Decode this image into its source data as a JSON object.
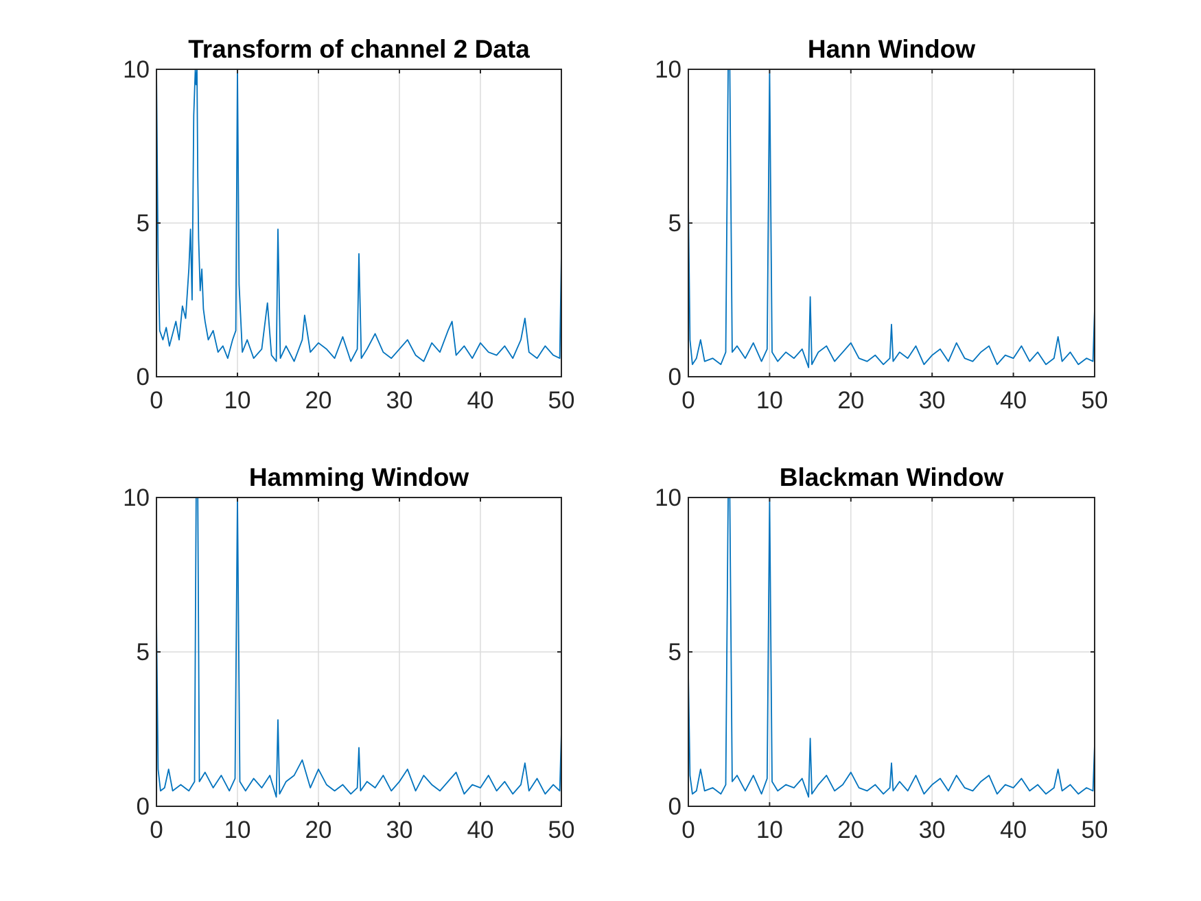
{
  "chart_data": [
    {
      "type": "line",
      "title": "Transform of channel 2 Data",
      "xlabel": "",
      "ylabel": "",
      "xlim": [
        0,
        50
      ],
      "ylim": [
        0,
        10
      ],
      "xticks": [
        "0",
        "10",
        "20",
        "30",
        "40",
        "50"
      ],
      "yticks": [
        "0",
        "5",
        "10"
      ],
      "grid": true,
      "color": "#0072BD",
      "series": [
        {
          "x": [
            0,
            0.2,
            0.4,
            0.8,
            1.2,
            1.6,
            2.0,
            2.4,
            2.8,
            3.2,
            3.6,
            4.0,
            4.2,
            4.4,
            4.6,
            4.8,
            4.9,
            5.0,
            5.1,
            5.2,
            5.4,
            5.6,
            5.8,
            6.0,
            6.4,
            7.0,
            7.6,
            8.2,
            8.8,
            9.4,
            9.8,
            10.0,
            10.2,
            10.6,
            11.2,
            12.0,
            13.0,
            13.7,
            14.2,
            14.8,
            15.0,
            15.3,
            16.0,
            17.0,
            18.0,
            18.3,
            19.0,
            20.0,
            21.0,
            22.0,
            23.0,
            24.0,
            24.8,
            25.0,
            25.3,
            26.0,
            27.0,
            28.0,
            29.0,
            30.0,
            31.0,
            32.0,
            33.0,
            34.0,
            35.0,
            36.0,
            36.5,
            37.0,
            38.0,
            39.0,
            40.0,
            41.0,
            42.0,
            43.0,
            44.0,
            45.0,
            45.5,
            46.0,
            47.0,
            48.0,
            49.0,
            49.8,
            50.0
          ],
          "y": [
            10,
            3.8,
            1.5,
            1.2,
            1.6,
            1.0,
            1.4,
            1.8,
            1.2,
            2.3,
            1.9,
            3.5,
            4.8,
            2.5,
            8.5,
            10,
            9.5,
            10,
            6.5,
            4.5,
            2.8,
            3.5,
            2.2,
            1.8,
            1.2,
            1.5,
            0.8,
            1.0,
            0.6,
            1.2,
            1.5,
            10,
            3.0,
            0.8,
            1.2,
            0.6,
            0.9,
            2.4,
            0.7,
            0.5,
            4.8,
            0.6,
            1.0,
            0.5,
            1.2,
            2.0,
            0.8,
            1.1,
            0.9,
            0.6,
            1.3,
            0.5,
            0.9,
            4.0,
            0.6,
            0.9,
            1.4,
            0.8,
            0.6,
            0.9,
            1.2,
            0.7,
            0.5,
            1.1,
            0.8,
            1.5,
            1.8,
            0.7,
            1.0,
            0.6,
            1.1,
            0.8,
            0.7,
            1.0,
            0.6,
            1.2,
            1.9,
            0.8,
            0.6,
            1.0,
            0.7,
            0.6,
            4.0
          ]
        }
      ]
    },
    {
      "type": "line",
      "title": "Hann Window",
      "xlabel": "",
      "ylabel": "",
      "xlim": [
        0,
        50
      ],
      "ylim": [
        0,
        10
      ],
      "xticks": [
        "0",
        "10",
        "20",
        "30",
        "40",
        "50"
      ],
      "yticks": [
        "0",
        "5",
        "10"
      ],
      "grid": true,
      "color": "#0072BD",
      "series": [
        {
          "x": [
            0,
            0.2,
            0.5,
            1.0,
            1.5,
            2.0,
            3.0,
            4.0,
            4.6,
            4.9,
            5.0,
            5.1,
            5.4,
            6.0,
            7.0,
            8.0,
            9.0,
            9.7,
            10.0,
            10.3,
            11.0,
            12.0,
            13.0,
            14.0,
            14.8,
            15.0,
            15.2,
            16.0,
            17.0,
            18.0,
            19.0,
            20.0,
            21.0,
            22.0,
            23.0,
            24.0,
            24.8,
            25.0,
            25.2,
            26.0,
            27.0,
            28.0,
            29.0,
            30.0,
            31.0,
            32.0,
            33.0,
            34.0,
            35.0,
            36.0,
            37.0,
            38.0,
            39.0,
            40.0,
            41.0,
            42.0,
            43.0,
            44.0,
            45.0,
            45.5,
            46.0,
            47.0,
            48.0,
            49.0,
            49.8,
            50.0
          ],
          "y": [
            5.7,
            1.2,
            0.4,
            0.6,
            1.2,
            0.5,
            0.6,
            0.4,
            0.8,
            10,
            10,
            10,
            0.8,
            1.0,
            0.6,
            1.1,
            0.5,
            0.9,
            10,
            0.8,
            0.5,
            0.8,
            0.6,
            0.9,
            0.3,
            2.6,
            0.4,
            0.8,
            1.0,
            0.5,
            0.8,
            1.1,
            0.6,
            0.5,
            0.7,
            0.4,
            0.6,
            1.7,
            0.5,
            0.8,
            0.6,
            1.0,
            0.4,
            0.7,
            0.9,
            0.5,
            1.1,
            0.6,
            0.5,
            0.8,
            1.0,
            0.4,
            0.7,
            0.6,
            1.0,
            0.5,
            0.8,
            0.4,
            0.6,
            1.3,
            0.5,
            0.8,
            0.4,
            0.6,
            0.5,
            2.2
          ]
        }
      ]
    },
    {
      "type": "line",
      "title": "Hamming Window",
      "xlabel": "",
      "ylabel": "",
      "xlim": [
        0,
        50
      ],
      "ylim": [
        0,
        10
      ],
      "xticks": [
        "0",
        "10",
        "20",
        "30",
        "40",
        "50"
      ],
      "yticks": [
        "0",
        "5",
        "10"
      ],
      "grid": true,
      "color": "#0072BD",
      "series": [
        {
          "x": [
            0,
            0.2,
            0.5,
            1.0,
            1.5,
            2.0,
            3.0,
            4.0,
            4.7,
            4.9,
            5.0,
            5.1,
            5.3,
            6.0,
            7.0,
            8.0,
            9.0,
            9.7,
            10.0,
            10.3,
            11.0,
            12.0,
            13.0,
            14.0,
            14.8,
            15.0,
            15.2,
            16.0,
            17.0,
            18.0,
            19.0,
            20.0,
            21.0,
            22.0,
            23.0,
            24.0,
            24.8,
            25.0,
            25.2,
            26.0,
            27.0,
            28.0,
            29.0,
            30.0,
            31.0,
            32.0,
            33.0,
            34.0,
            35.0,
            36.0,
            37.0,
            38.0,
            39.0,
            40.0,
            41.0,
            42.0,
            43.0,
            44.0,
            45.0,
            45.5,
            46.0,
            47.0,
            48.0,
            49.0,
            49.8,
            50.0
          ],
          "y": [
            6.1,
            1.2,
            0.5,
            0.6,
            1.2,
            0.5,
            0.7,
            0.5,
            0.8,
            10,
            10,
            10,
            0.8,
            1.1,
            0.6,
            1.0,
            0.5,
            0.9,
            10,
            0.8,
            0.5,
            0.9,
            0.6,
            1.0,
            0.3,
            2.8,
            0.4,
            0.8,
            1.0,
            1.5,
            0.6,
            1.2,
            0.7,
            0.5,
            0.7,
            0.4,
            0.6,
            1.9,
            0.5,
            0.8,
            0.6,
            1.0,
            0.5,
            0.8,
            1.2,
            0.5,
            1.0,
            0.7,
            0.5,
            0.8,
            1.1,
            0.4,
            0.7,
            0.6,
            1.0,
            0.5,
            0.8,
            0.4,
            0.7,
            1.4,
            0.5,
            0.9,
            0.4,
            0.7,
            0.5,
            2.4
          ]
        }
      ]
    },
    {
      "type": "line",
      "title": "Blackman Window",
      "xlabel": "",
      "ylabel": "",
      "xlim": [
        0,
        50
      ],
      "ylim": [
        0,
        10
      ],
      "xticks": [
        "0",
        "10",
        "20",
        "30",
        "40",
        "50"
      ],
      "yticks": [
        "0",
        "5",
        "10"
      ],
      "grid": true,
      "color": "#0072BD",
      "series": [
        {
          "x": [
            0,
            0.2,
            0.5,
            1.0,
            1.5,
            2.0,
            3.0,
            4.0,
            4.6,
            4.9,
            5.0,
            5.1,
            5.4,
            6.0,
            7.0,
            8.0,
            9.0,
            9.7,
            10.0,
            10.3,
            11.0,
            12.0,
            13.0,
            14.0,
            14.8,
            15.0,
            15.2,
            16.0,
            17.0,
            18.0,
            19.0,
            20.0,
            21.0,
            22.0,
            23.0,
            24.0,
            24.8,
            25.0,
            25.2,
            26.0,
            27.0,
            28.0,
            29.0,
            30.0,
            31.0,
            32.0,
            33.0,
            34.0,
            35.0,
            36.0,
            37.0,
            38.0,
            39.0,
            40.0,
            41.0,
            42.0,
            43.0,
            44.0,
            45.0,
            45.5,
            46.0,
            47.0,
            48.0,
            49.0,
            49.8,
            50.0
          ],
          "y": [
            4.3,
            1.0,
            0.4,
            0.5,
            1.2,
            0.5,
            0.6,
            0.4,
            0.7,
            10,
            10,
            10,
            0.8,
            1.0,
            0.5,
            1.0,
            0.4,
            0.9,
            10,
            0.8,
            0.5,
            0.7,
            0.6,
            0.9,
            0.3,
            2.2,
            0.4,
            0.7,
            1.0,
            0.5,
            0.7,
            1.1,
            0.6,
            0.5,
            0.7,
            0.4,
            0.6,
            1.4,
            0.5,
            0.8,
            0.5,
            1.0,
            0.4,
            0.7,
            0.9,
            0.5,
            1.0,
            0.6,
            0.5,
            0.8,
            1.0,
            0.4,
            0.7,
            0.6,
            0.9,
            0.5,
            0.7,
            0.4,
            0.6,
            1.2,
            0.5,
            0.7,
            0.4,
            0.6,
            0.5,
            2.0
          ]
        }
      ]
    }
  ]
}
